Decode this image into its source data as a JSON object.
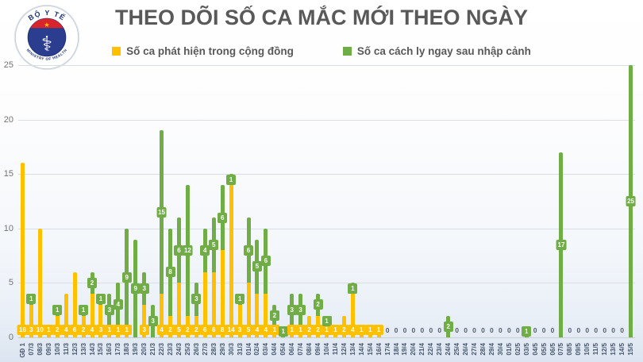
{
  "title": "THEO DÕI SỐ CA MẮC MỚI THEO NGÀY",
  "logo": {
    "top_text": "BỘ Y TẾ",
    "bottom_text": "MINISTRY OF HEALTH",
    "star": "★",
    "caduceus": "⚕"
  },
  "legend": {
    "community": "Số ca phát hiện trong cộng đồng",
    "quarantine": "Số ca cách ly ngay sau nhập cảnh"
  },
  "colors": {
    "community": "#FFC000",
    "quarantine": "#70AD47",
    "title_text": "#595959",
    "axis_label": "#44546A",
    "y_label": "#737373",
    "grid": "#D9DEE5",
    "logo_navy": "#2B3D8F",
    "logo_red": "#D8242B",
    "logo_star": "#FFD200"
  },
  "chart_data": {
    "type": "bar",
    "stacked": true,
    "title": "THEO DÕI SỐ CA MẮC MỚI THEO NGÀY",
    "xlabel": "",
    "ylabel": "",
    "ylim": [
      0,
      25
    ],
    "yticks": [
      0,
      5,
      10,
      15,
      20,
      25
    ],
    "grid": true,
    "legend_position": "top",
    "zero_label": "0",
    "categories": [
      "GĐ 1",
      "07/3",
      "08/3",
      "09/3",
      "10/3",
      "11/3",
      "12/3",
      "13/3",
      "14/3",
      "15/3",
      "16/3",
      "17/3",
      "18/3",
      "19/3",
      "20/3",
      "21/3",
      "22/3",
      "23/3",
      "24/3",
      "25/3",
      "26/3",
      "27/3",
      "28/3",
      "29/3",
      "30/3",
      "31/3",
      "01/4",
      "02/4",
      "03/4",
      "04/4",
      "05/4",
      "06/4",
      "07/4",
      "08/4",
      "09/4",
      "10/4",
      "11/4",
      "12/4",
      "13/4",
      "14/4",
      "15/4",
      "16/4",
      "17/4",
      "18/4",
      "19/4",
      "20/4",
      "21/4",
      "22/4",
      "23/4",
      "24/4",
      "25/4",
      "26/4",
      "27/4",
      "28/4",
      "29/4",
      "30/4",
      "01/5",
      "02/5",
      "03/5",
      "04/5",
      "05/5",
      "06/5",
      "07/5",
      "08/5",
      "09/5",
      "10/5",
      "11/5",
      "12/5",
      "13/5",
      "14/5",
      "15/5"
    ],
    "series": [
      {
        "name": "Số ca phát hiện trong cộng đồng",
        "color_key": "community",
        "values": [
          16,
          3,
          10,
          1,
          2,
          4,
          6,
          2,
          4,
          3,
          1,
          1,
          1,
          0,
          3,
          0,
          4,
          2,
          5,
          2,
          2,
          6,
          6,
          8,
          14,
          3,
          5,
          4,
          4,
          1,
          0,
          1,
          1,
          2,
          2,
          1,
          1,
          2,
          4,
          1,
          1,
          1,
          0,
          0,
          0,
          0,
          0,
          0,
          0,
          0,
          0,
          0,
          0,
          0,
          0,
          0,
          0,
          0,
          0,
          0,
          0,
          0,
          0,
          0,
          0,
          0,
          0,
          0,
          0,
          0,
          0
        ]
      },
      {
        "name": "Số ca cách ly ngay sau nhập cảnh",
        "color_key": "quarantine",
        "values": [
          0,
          1,
          0,
          0,
          1,
          0,
          0,
          1,
          2,
          1,
          3,
          4,
          9,
          9,
          3,
          3,
          15,
          8,
          6,
          12,
          3,
          4,
          5,
          6,
          1,
          1,
          6,
          5,
          6,
          2,
          1,
          3,
          3,
          0,
          2,
          1,
          0,
          0,
          1,
          0,
          0,
          0,
          0,
          0,
          0,
          0,
          0,
          0,
          0,
          2,
          0,
          0,
          0,
          0,
          0,
          0,
          0,
          0,
          1,
          0,
          0,
          0,
          17,
          0,
          0,
          0,
          0,
          0,
          0,
          0,
          25
        ]
      }
    ]
  }
}
